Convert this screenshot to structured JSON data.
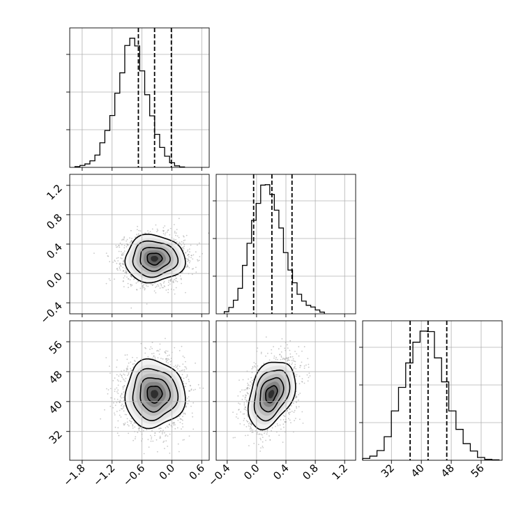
{
  "chart_data": {
    "type": "corner",
    "grid": true,
    "parameters": [
      {
        "range": [
          -2.05,
          0.75
        ],
        "ticks": [
          -1.8,
          -1.2,
          -0.6,
          0.0,
          0.6
        ],
        "tick_labels": [
          "−1.8",
          "−1.2",
          "−0.6",
          "0.0",
          "0.6"
        ]
      },
      {
        "range": [
          -0.55,
          1.35
        ],
        "ticks": [
          -0.4,
          0.0,
          0.4,
          0.8,
          1.2
        ],
        "tick_labels": [
          "−0.4",
          "0.0",
          "0.4",
          "0.8",
          "1.2"
        ]
      },
      {
        "range": [
          24.3,
          61.6
        ],
        "ticks": [
          32,
          40,
          48,
          56
        ],
        "tick_labels": [
          "32",
          "40",
          "48",
          "56"
        ]
      }
    ],
    "quantiles": [
      [
        -0.672,
        -0.347,
        -0.01
      ],
      [
        -0.04,
        0.209,
        0.483
      ],
      [
        37.0,
        41.8,
        46.8
      ]
    ],
    "histograms": [
      {
        "bin_start": -1.945,
        "bin_width": 0.1,
        "counts": [
          0.2,
          0.5,
          0.9,
          1.7,
          3.2,
          6.4,
          9.6,
          13.5,
          19.3,
          24.6,
          31.7,
          33.6,
          31.6,
          25.1,
          18.9,
          13.4,
          8.6,
          5.2,
          2.9,
          1.2,
          0.4,
          0.1
        ]
      },
      {
        "bin_start": -0.44,
        "bin_width": 0.062,
        "counts": [
          0.5,
          1.5,
          3.2,
          6.0,
          11.4,
          16.6,
          22.0,
          26.0,
          30.3,
          30.4,
          28.1,
          24.4,
          20.2,
          14.4,
          10.3,
          7.3,
          4.6,
          3.0,
          2.0,
          1.6,
          0.9,
          0.4
        ]
      },
      {
        "bin_start": 24.3,
        "bin_width": 1.92,
        "counts": [
          0.4,
          0.9,
          2.1,
          5.1,
          10.7,
          15.8,
          21.1,
          25.6,
          28.0,
          27.9,
          22.2,
          17.0,
          10.7,
          6.7,
          3.6,
          2.0,
          0.6,
          0.2,
          0.1
        ]
      }
    ],
    "scatter_2d": [
      {
        "x_param": 0,
        "y_param": 1,
        "center": [
          -0.35,
          0.2
        ],
        "sd": [
          0.3,
          0.16
        ],
        "rho": 0.0,
        "levels_sigma": [
          0.5,
          1.0,
          1.5,
          2.0
        ]
      },
      {
        "x_param": 0,
        "y_param": 2,
        "center": [
          -0.35,
          42.0
        ],
        "sd": [
          0.3,
          4.5
        ],
        "rho": 0.0,
        "levels_sigma": [
          0.5,
          1.0,
          1.5,
          2.0
        ]
      },
      {
        "x_param": 1,
        "y_param": 2,
        "center": [
          0.2,
          42.0
        ],
        "sd": [
          0.16,
          4.5
        ],
        "rho": 0.35,
        "levels_sigma": [
          0.5,
          1.0,
          1.5,
          2.0
        ]
      }
    ]
  }
}
